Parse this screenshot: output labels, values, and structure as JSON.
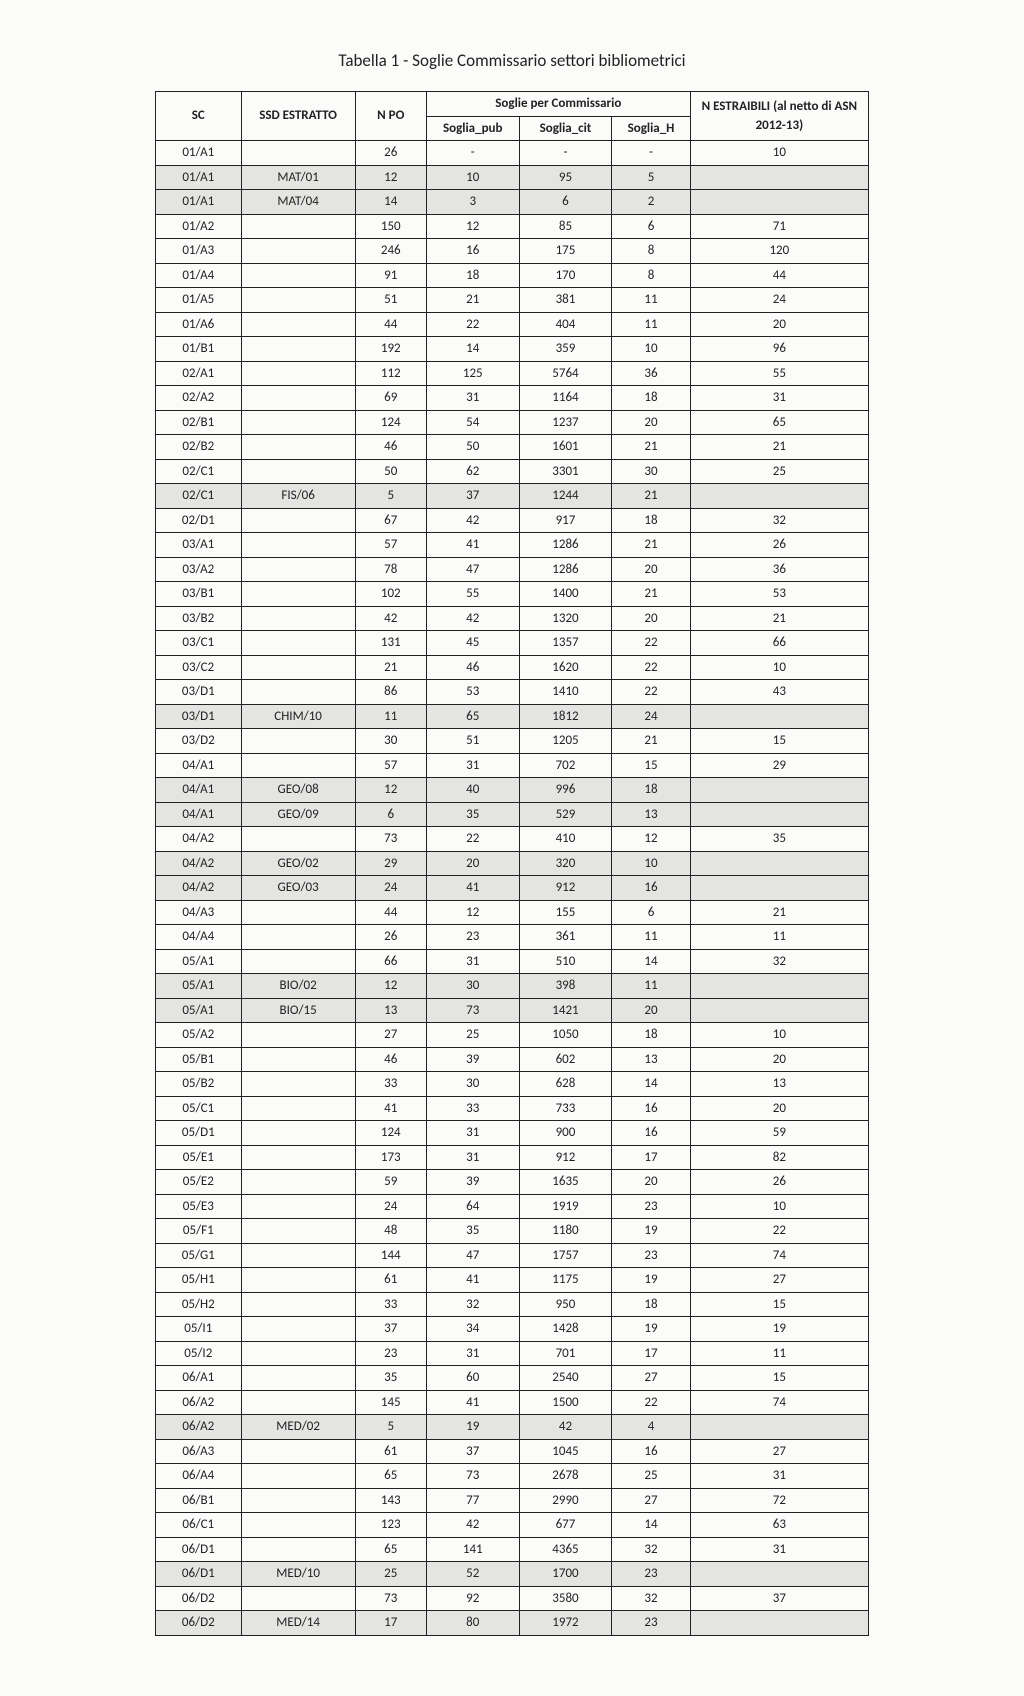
{
  "title": "Tabella 1 - Soglie Commissario settori bibliometrici",
  "headers": {
    "sc": "SC",
    "ssd": "SSD ESTRATTO",
    "npo": "N PO",
    "soglie_group": "Soglie per Commissario",
    "soglia_pub": "Soglia_pub",
    "soglia_cit": "Soglia_cit",
    "soglia_h": "Soglia_H",
    "n_estraibili": "N ESTRAIBILI (al netto di ASN 2012-13)"
  },
  "rows": [
    {
      "sc": "01/A1",
      "ssd": "",
      "npo": "26",
      "pub": "-",
      "cit": "-",
      "h": "-",
      "nest": "10",
      "shaded": false
    },
    {
      "sc": "01/A1",
      "ssd": "MAT/01",
      "npo": "12",
      "pub": "10",
      "cit": "95",
      "h": "5",
      "nest": "",
      "shaded": true
    },
    {
      "sc": "01/A1",
      "ssd": "MAT/04",
      "npo": "14",
      "pub": "3",
      "cit": "6",
      "h": "2",
      "nest": "",
      "shaded": true
    },
    {
      "sc": "01/A2",
      "ssd": "",
      "npo": "150",
      "pub": "12",
      "cit": "85",
      "h": "6",
      "nest": "71",
      "shaded": false
    },
    {
      "sc": "01/A3",
      "ssd": "",
      "npo": "246",
      "pub": "16",
      "cit": "175",
      "h": "8",
      "nest": "120",
      "shaded": false
    },
    {
      "sc": "01/A4",
      "ssd": "",
      "npo": "91",
      "pub": "18",
      "cit": "170",
      "h": "8",
      "nest": "44",
      "shaded": false
    },
    {
      "sc": "01/A5",
      "ssd": "",
      "npo": "51",
      "pub": "21",
      "cit": "381",
      "h": "11",
      "nest": "24",
      "shaded": false
    },
    {
      "sc": "01/A6",
      "ssd": "",
      "npo": "44",
      "pub": "22",
      "cit": "404",
      "h": "11",
      "nest": "20",
      "shaded": false
    },
    {
      "sc": "01/B1",
      "ssd": "",
      "npo": "192",
      "pub": "14",
      "cit": "359",
      "h": "10",
      "nest": "96",
      "shaded": false
    },
    {
      "sc": "02/A1",
      "ssd": "",
      "npo": "112",
      "pub": "125",
      "cit": "5764",
      "h": "36",
      "nest": "55",
      "shaded": false
    },
    {
      "sc": "02/A2",
      "ssd": "",
      "npo": "69",
      "pub": "31",
      "cit": "1164",
      "h": "18",
      "nest": "31",
      "shaded": false
    },
    {
      "sc": "02/B1",
      "ssd": "",
      "npo": "124",
      "pub": "54",
      "cit": "1237",
      "h": "20",
      "nest": "65",
      "shaded": false
    },
    {
      "sc": "02/B2",
      "ssd": "",
      "npo": "46",
      "pub": "50",
      "cit": "1601",
      "h": "21",
      "nest": "21",
      "shaded": false
    },
    {
      "sc": "02/C1",
      "ssd": "",
      "npo": "50",
      "pub": "62",
      "cit": "3301",
      "h": "30",
      "nest": "25",
      "shaded": false
    },
    {
      "sc": "02/C1",
      "ssd": "FIS/06",
      "npo": "5",
      "pub": "37",
      "cit": "1244",
      "h": "21",
      "nest": "",
      "shaded": true
    },
    {
      "sc": "02/D1",
      "ssd": "",
      "npo": "67",
      "pub": "42",
      "cit": "917",
      "h": "18",
      "nest": "32",
      "shaded": false
    },
    {
      "sc": "03/A1",
      "ssd": "",
      "npo": "57",
      "pub": "41",
      "cit": "1286",
      "h": "21",
      "nest": "26",
      "shaded": false
    },
    {
      "sc": "03/A2",
      "ssd": "",
      "npo": "78",
      "pub": "47",
      "cit": "1286",
      "h": "20",
      "nest": "36",
      "shaded": false
    },
    {
      "sc": "03/B1",
      "ssd": "",
      "npo": "102",
      "pub": "55",
      "cit": "1400",
      "h": "21",
      "nest": "53",
      "shaded": false
    },
    {
      "sc": "03/B2",
      "ssd": "",
      "npo": "42",
      "pub": "42",
      "cit": "1320",
      "h": "20",
      "nest": "21",
      "shaded": false
    },
    {
      "sc": "03/C1",
      "ssd": "",
      "npo": "131",
      "pub": "45",
      "cit": "1357",
      "h": "22",
      "nest": "66",
      "shaded": false
    },
    {
      "sc": "03/C2",
      "ssd": "",
      "npo": "21",
      "pub": "46",
      "cit": "1620",
      "h": "22",
      "nest": "10",
      "shaded": false
    },
    {
      "sc": "03/D1",
      "ssd": "",
      "npo": "86",
      "pub": "53",
      "cit": "1410",
      "h": "22",
      "nest": "43",
      "shaded": false
    },
    {
      "sc": "03/D1",
      "ssd": "CHIM/10",
      "npo": "11",
      "pub": "65",
      "cit": "1812",
      "h": "24",
      "nest": "",
      "shaded": true
    },
    {
      "sc": "03/D2",
      "ssd": "",
      "npo": "30",
      "pub": "51",
      "cit": "1205",
      "h": "21",
      "nest": "15",
      "shaded": false
    },
    {
      "sc": "04/A1",
      "ssd": "",
      "npo": "57",
      "pub": "31",
      "cit": "702",
      "h": "15",
      "nest": "29",
      "shaded": false
    },
    {
      "sc": "04/A1",
      "ssd": "GEO/08",
      "npo": "12",
      "pub": "40",
      "cit": "996",
      "h": "18",
      "nest": "",
      "shaded": true
    },
    {
      "sc": "04/A1",
      "ssd": "GEO/09",
      "npo": "6",
      "pub": "35",
      "cit": "529",
      "h": "13",
      "nest": "",
      "shaded": true
    },
    {
      "sc": "04/A2",
      "ssd": "",
      "npo": "73",
      "pub": "22",
      "cit": "410",
      "h": "12",
      "nest": "35",
      "shaded": false
    },
    {
      "sc": "04/A2",
      "ssd": "GEO/02",
      "npo": "29",
      "pub": "20",
      "cit": "320",
      "h": "10",
      "nest": "",
      "shaded": true
    },
    {
      "sc": "04/A2",
      "ssd": "GEO/03",
      "npo": "24",
      "pub": "41",
      "cit": "912",
      "h": "16",
      "nest": "",
      "shaded": true
    },
    {
      "sc": "04/A3",
      "ssd": "",
      "npo": "44",
      "pub": "12",
      "cit": "155",
      "h": "6",
      "nest": "21",
      "shaded": false
    },
    {
      "sc": "04/A4",
      "ssd": "",
      "npo": "26",
      "pub": "23",
      "cit": "361",
      "h": "11",
      "nest": "11",
      "shaded": false
    },
    {
      "sc": "05/A1",
      "ssd": "",
      "npo": "66",
      "pub": "31",
      "cit": "510",
      "h": "14",
      "nest": "32",
      "shaded": false
    },
    {
      "sc": "05/A1",
      "ssd": "BIO/02",
      "npo": "12",
      "pub": "30",
      "cit": "398",
      "h": "11",
      "nest": "",
      "shaded": true
    },
    {
      "sc": "05/A1",
      "ssd": "BIO/15",
      "npo": "13",
      "pub": "73",
      "cit": "1421",
      "h": "20",
      "nest": "",
      "shaded": true
    },
    {
      "sc": "05/A2",
      "ssd": "",
      "npo": "27",
      "pub": "25",
      "cit": "1050",
      "h": "18",
      "nest": "10",
      "shaded": false
    },
    {
      "sc": "05/B1",
      "ssd": "",
      "npo": "46",
      "pub": "39",
      "cit": "602",
      "h": "13",
      "nest": "20",
      "shaded": false
    },
    {
      "sc": "05/B2",
      "ssd": "",
      "npo": "33",
      "pub": "30",
      "cit": "628",
      "h": "14",
      "nest": "13",
      "shaded": false
    },
    {
      "sc": "05/C1",
      "ssd": "",
      "npo": "41",
      "pub": "33",
      "cit": "733",
      "h": "16",
      "nest": "20",
      "shaded": false
    },
    {
      "sc": "05/D1",
      "ssd": "",
      "npo": "124",
      "pub": "31",
      "cit": "900",
      "h": "16",
      "nest": "59",
      "shaded": false
    },
    {
      "sc": "05/E1",
      "ssd": "",
      "npo": "173",
      "pub": "31",
      "cit": "912",
      "h": "17",
      "nest": "82",
      "shaded": false
    },
    {
      "sc": "05/E2",
      "ssd": "",
      "npo": "59",
      "pub": "39",
      "cit": "1635",
      "h": "20",
      "nest": "26",
      "shaded": false
    },
    {
      "sc": "05/E3",
      "ssd": "",
      "npo": "24",
      "pub": "64",
      "cit": "1919",
      "h": "23",
      "nest": "10",
      "shaded": false
    },
    {
      "sc": "05/F1",
      "ssd": "",
      "npo": "48",
      "pub": "35",
      "cit": "1180",
      "h": "19",
      "nest": "22",
      "shaded": false
    },
    {
      "sc": "05/G1",
      "ssd": "",
      "npo": "144",
      "pub": "47",
      "cit": "1757",
      "h": "23",
      "nest": "74",
      "shaded": false
    },
    {
      "sc": "05/H1",
      "ssd": "",
      "npo": "61",
      "pub": "41",
      "cit": "1175",
      "h": "19",
      "nest": "27",
      "shaded": false
    },
    {
      "sc": "05/H2",
      "ssd": "",
      "npo": "33",
      "pub": "32",
      "cit": "950",
      "h": "18",
      "nest": "15",
      "shaded": false
    },
    {
      "sc": "05/I1",
      "ssd": "",
      "npo": "37",
      "pub": "34",
      "cit": "1428",
      "h": "19",
      "nest": "19",
      "shaded": false
    },
    {
      "sc": "05/I2",
      "ssd": "",
      "npo": "23",
      "pub": "31",
      "cit": "701",
      "h": "17",
      "nest": "11",
      "shaded": false
    },
    {
      "sc": "06/A1",
      "ssd": "",
      "npo": "35",
      "pub": "60",
      "cit": "2540",
      "h": "27",
      "nest": "15",
      "shaded": false
    },
    {
      "sc": "06/A2",
      "ssd": "",
      "npo": "145",
      "pub": "41",
      "cit": "1500",
      "h": "22",
      "nest": "74",
      "shaded": false
    },
    {
      "sc": "06/A2",
      "ssd": "MED/02",
      "npo": "5",
      "pub": "19",
      "cit": "42",
      "h": "4",
      "nest": "",
      "shaded": true
    },
    {
      "sc": "06/A3",
      "ssd": "",
      "npo": "61",
      "pub": "37",
      "cit": "1045",
      "h": "16",
      "nest": "27",
      "shaded": false
    },
    {
      "sc": "06/A4",
      "ssd": "",
      "npo": "65",
      "pub": "73",
      "cit": "2678",
      "h": "25",
      "nest": "31",
      "shaded": false
    },
    {
      "sc": "06/B1",
      "ssd": "",
      "npo": "143",
      "pub": "77",
      "cit": "2990",
      "h": "27",
      "nest": "72",
      "shaded": false
    },
    {
      "sc": "06/C1",
      "ssd": "",
      "npo": "123",
      "pub": "42",
      "cit": "677",
      "h": "14",
      "nest": "63",
      "shaded": false
    },
    {
      "sc": "06/D1",
      "ssd": "",
      "npo": "65",
      "pub": "141",
      "cit": "4365",
      "h": "32",
      "nest": "31",
      "shaded": false
    },
    {
      "sc": "06/D1",
      "ssd": "MED/10",
      "npo": "25",
      "pub": "52",
      "cit": "1700",
      "h": "23",
      "nest": "",
      "shaded": true
    },
    {
      "sc": "06/D2",
      "ssd": "",
      "npo": "73",
      "pub": "92",
      "cit": "3580",
      "h": "32",
      "nest": "37",
      "shaded": false
    },
    {
      "sc": "06/D2",
      "ssd": "MED/14",
      "npo": "17",
      "pub": "80",
      "cit": "1972",
      "h": "23",
      "nest": "",
      "shaded": true
    }
  ]
}
